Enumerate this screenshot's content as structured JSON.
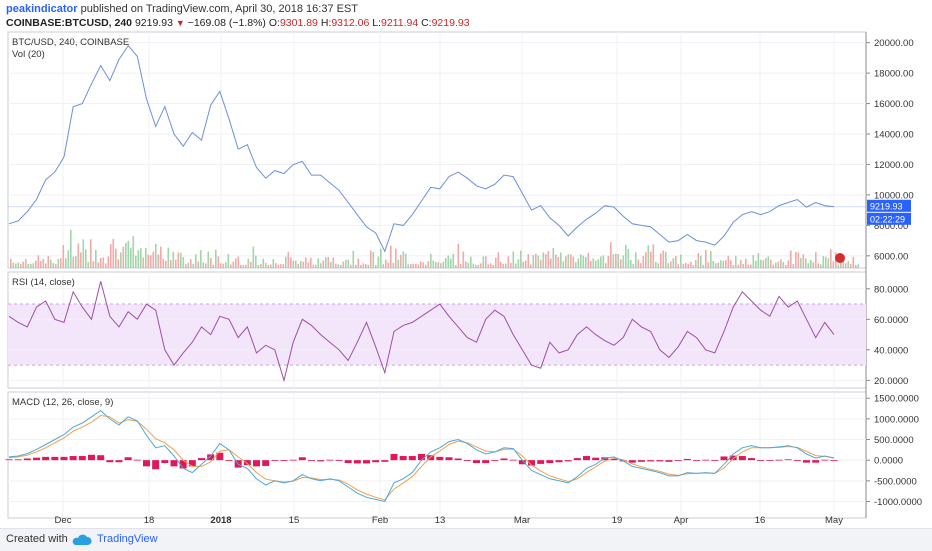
{
  "header": {
    "user": "peakindicator",
    "published_text": "published on TradingView.com, April 30, 2018 16:37 EST",
    "symbol_line": "COINBASE:BTCUSD, 240",
    "last": "9219.93",
    "change": "−169.08 (−1.8%)",
    "o_label": "O:",
    "o_value": "9301.89",
    "h_label": "H:",
    "h_value": "9312.06",
    "l_label": "L:",
    "l_value": "9211.94",
    "c_label": "C:",
    "c_value": "9219.93"
  },
  "footer": {
    "created_with": "Created with",
    "brand": "TradingView"
  },
  "colors": {
    "price": "#6d8fd8",
    "rsi": "#9c4fa8",
    "rsi_band": "#f3e6fb",
    "macd": "#4fa8d8",
    "signal": "#f0a050",
    "hist": "#e0185a",
    "vol_up": "#8fcf9a",
    "vol_down": "#f29a9a",
    "last_badge": "#2962ff"
  },
  "chart_data": [
    {
      "type": "line",
      "title": "BTC/USD, 240, COINBASE",
      "subtitle": "Vol (20)",
      "x_ticks": [
        "Dec",
        "18",
        "2018",
        "15",
        "Feb",
        "13",
        "Mar",
        "19",
        "Apr",
        "16",
        "May"
      ],
      "y_ticks": [
        "6000.00",
        "8000.00",
        "10000.00",
        "12000.00",
        "14000.00",
        "16000.00",
        "18000.00",
        "20000.00"
      ],
      "ylim": [
        5200,
        20700
      ],
      "last_value_label": "9219.93",
      "countdown_label": "02:22:29",
      "series": [
        {
          "values": [
            8100,
            8300,
            8900,
            9700,
            11000,
            11500,
            12500,
            15800,
            16000,
            17300,
            18500,
            17500,
            18900,
            19800,
            19100,
            16300,
            14500,
            15800,
            14000,
            13200,
            14100,
            13600,
            15900,
            16800,
            15000,
            13000,
            13300,
            11800,
            11100,
            11600,
            11400,
            12000,
            12200,
            11300,
            11300,
            10800,
            10300,
            9500,
            8700,
            7900,
            7500,
            6300,
            8100,
            8000,
            8700,
            9600,
            10500,
            10400,
            11200,
            11500,
            11100,
            10600,
            10400,
            10700,
            11300,
            11200,
            10100,
            9000,
            9300,
            8500,
            8000,
            7300,
            7900,
            8400,
            8800,
            9300,
            9200,
            8600,
            8100,
            8000,
            7900,
            7400,
            6900,
            7000,
            7400,
            7000,
            6900,
            6700,
            7300,
            8200,
            8700,
            8900,
            8700,
            8900,
            9300,
            9500,
            9700,
            9200,
            9500,
            9300,
            9220
          ]
        }
      ]
    },
    {
      "type": "line",
      "title": "RSI (14, close)",
      "y_ticks": [
        "20.0000",
        "40.0000",
        "60.0000",
        "80.0000"
      ],
      "ylim": [
        15,
        91
      ],
      "band": [
        30,
        70
      ],
      "series": [
        {
          "values": [
            62,
            58,
            55,
            68,
            72,
            60,
            58,
            78,
            68,
            60,
            85,
            62,
            55,
            65,
            60,
            70,
            66,
            40,
            30,
            38,
            45,
            55,
            50,
            62,
            60,
            48,
            55,
            38,
            43,
            40,
            20,
            45,
            60,
            56,
            50,
            45,
            40,
            33,
            45,
            58,
            42,
            25,
            52,
            56,
            58,
            62,
            66,
            70,
            62,
            55,
            48,
            45,
            60,
            66,
            62,
            50,
            40,
            30,
            28,
            45,
            38,
            40,
            50,
            55,
            50,
            46,
            43,
            48,
            60,
            55,
            52,
            40,
            35,
            42,
            52,
            48,
            40,
            38,
            52,
            68,
            78,
            72,
            66,
            62,
            75,
            68,
            72,
            60,
            48,
            58,
            50
          ]
        }
      ]
    },
    {
      "type": "line",
      "title": "MACD (12, 26, close, 9)",
      "y_ticks": [
        "-1000.0000",
        "-500.0000",
        "0.0000",
        "500.0000",
        "1000.0000",
        "1500.0000"
      ],
      "ylim": [
        -1400,
        1650
      ],
      "series": [
        {
          "values": [
            80,
            100,
            160,
            260,
            380,
            500,
            620,
            800,
            900,
            1050,
            1200,
            1000,
            850,
            1050,
            950,
            600,
            300,
            350,
            100,
            -200,
            -300,
            -100,
            100,
            400,
            250,
            -100,
            -200,
            -450,
            -600,
            -500,
            -550,
            -500,
            -350,
            -450,
            -500,
            -450,
            -500,
            -650,
            -800,
            -900,
            -950,
            -1000,
            -550,
            -450,
            -300,
            0,
            200,
            300,
            450,
            500,
            400,
            250,
            150,
            200,
            300,
            280,
            0,
            -250,
            -350,
            -450,
            -500,
            -550,
            -400,
            -200,
            -100,
            50,
            80,
            -20,
            -150,
            -200,
            -250,
            -300,
            -380,
            -380,
            -300,
            -320,
            -300,
            -320,
            -100,
            150,
            300,
            350,
            300,
            300,
            320,
            350,
            300,
            150,
            50,
            100,
            50
          ]
        },
        {
          "values": [
            60,
            80,
            120,
            200,
            300,
            420,
            540,
            700,
            800,
            920,
            1080,
            1050,
            900,
            980,
            940,
            750,
            520,
            420,
            250,
            0,
            -150,
            -150,
            -40,
            220,
            250,
            80,
            -80,
            -300,
            -460,
            -500,
            -530,
            -510,
            -420,
            -430,
            -470,
            -460,
            -480,
            -580,
            -720,
            -820,
            -900,
            -960,
            -700,
            -550,
            -400,
            -150,
            80,
            220,
            380,
            460,
            420,
            320,
            220,
            200,
            260,
            270,
            100,
            -120,
            -260,
            -380,
            -450,
            -520,
            -450,
            -300,
            -160,
            -20,
            50,
            10,
            -90,
            -160,
            -220,
            -270,
            -340,
            -370,
            -330,
            -320,
            -310,
            -320,
            -190,
            40,
            200,
            300,
            300,
            300,
            310,
            330,
            310,
            210,
            110,
            90,
            60
          ]
        },
        {
          "values": [
            20,
            20,
            40,
            60,
            80,
            80,
            80,
            100,
            100,
            130,
            120,
            -50,
            -50,
            70,
            10,
            -150,
            -220,
            -70,
            -150,
            -200,
            -150,
            50,
            140,
            180,
            0,
            -180,
            -120,
            -150,
            -140,
            0,
            -20,
            10,
            70,
            -20,
            -30,
            10,
            -20,
            -70,
            -80,
            -80,
            -50,
            -40,
            150,
            100,
            100,
            150,
            120,
            80,
            70,
            40,
            -20,
            -70,
            -70,
            0,
            40,
            10,
            -100,
            -130,
            -90,
            -70,
            -50,
            -30,
            50,
            100,
            60,
            70,
            30,
            -30,
            -60,
            -40,
            -30,
            -30,
            -40,
            -10,
            30,
            0,
            10,
            0,
            90,
            110,
            100,
            50,
            0,
            0,
            10,
            20,
            -10,
            -60,
            -60,
            10,
            -10
          ]
        }
      ]
    }
  ]
}
